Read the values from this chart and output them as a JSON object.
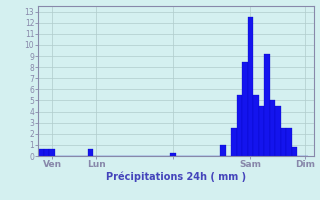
{
  "values": [
    0.6,
    0.6,
    0.6,
    0,
    0,
    0,
    0,
    0,
    0,
    0.6,
    0,
    0,
    0,
    0,
    0,
    0,
    0,
    0,
    0,
    0,
    0,
    0,
    0,
    0,
    0.3,
    0,
    0,
    0,
    0,
    0,
    0,
    0,
    0,
    1.0,
    0,
    2.5,
    5.5,
    8.5,
    12.5,
    5.5,
    4.5,
    9.2,
    5.0,
    4.5,
    2.5,
    2.5,
    0.8,
    0,
    0
  ],
  "xtick_positions": [
    2,
    10,
    24,
    38,
    48
  ],
  "xtick_labels": [
    "Ven",
    "Lun",
    "",
    "Sam",
    "Dim"
  ],
  "ytick_positions": [
    0,
    1,
    2,
    3,
    4,
    5,
    6,
    7,
    8,
    9,
    10,
    11,
    12,
    13
  ],
  "ytick_labels": [
    "0",
    "1",
    "2",
    "3",
    "4",
    "5",
    "6",
    "7",
    "8",
    "9",
    "10",
    "11",
    "12",
    "13"
  ],
  "xlabel": "Précipitations 24h ( mm )",
  "bar_color": "#1414ee",
  "bar_edge_color": "#0000bb",
  "background_color": "#d4f0f0",
  "grid_color": "#b0cccc",
  "axis_color": "#8888aa",
  "text_color": "#4444bb",
  "ylim": [
    0,
    13.5
  ],
  "xlim": [
    -0.5,
    49.5
  ]
}
